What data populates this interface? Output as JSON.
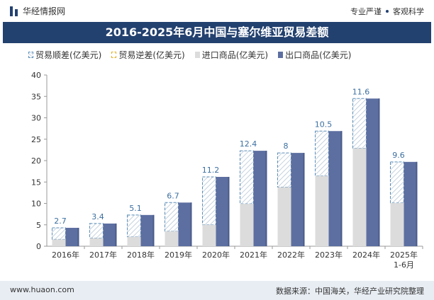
{
  "header": {
    "brand": "华经情报网",
    "slogan_left": "专业严谨",
    "slogan_right": "客观科学"
  },
  "footer": {
    "url": "www.huaon.com",
    "source": "数据来源：中国海关，华经产业研究院整理"
  },
  "colors": {
    "title_bg": "#23416f",
    "export": "#5d6fa1",
    "import": "#dcdcdc",
    "surplus_border": "#5b8db8",
    "deficit_border": "#e0b020",
    "label": "#3c6fa0"
  },
  "chart_data": {
    "type": "bar",
    "title": "2016-2025年6月中国与塞尔维亚贸易差额",
    "legend": [
      "贸易顺差(亿美元)",
      "贸易逆差(亿美元)",
      "进口商品(亿美元)",
      "出口商品(亿美元)"
    ],
    "categories": [
      "2016年",
      "2017年",
      "2018年",
      "2019年",
      "2020年",
      "2021年",
      "2022年",
      "2023年",
      "2024年",
      "2025年\n1-6月"
    ],
    "series": [
      {
        "name": "贸易顺差(亿美元)",
        "values": [
          2.7,
          3.4,
          5.1,
          6.7,
          11.2,
          12.4,
          8,
          10.5,
          11.6,
          9.6
        ]
      },
      {
        "name": "进口商品(亿美元)",
        "values": [
          1.6,
          1.9,
          2.2,
          3.5,
          5.0,
          9.9,
          13.8,
          16.4,
          22.9,
          10.1
        ]
      },
      {
        "name": "出口商品(亿美元)",
        "values": [
          4.3,
          5.3,
          7.3,
          10.2,
          16.2,
          22.3,
          21.8,
          26.9,
          34.5,
          19.7
        ]
      }
    ],
    "data_labels": [
      "2.7",
      "3.4",
      "5.1",
      "6.7",
      "11.2",
      "12.4",
      "8",
      "10.5",
      "11.6",
      "9.6"
    ],
    "ylim": [
      0,
      40
    ],
    "yticks": [
      0,
      5,
      10,
      15,
      20,
      25,
      30,
      35,
      40
    ],
    "xlabel": "",
    "ylabel": "",
    "legend_position": "top",
    "grid": false
  }
}
